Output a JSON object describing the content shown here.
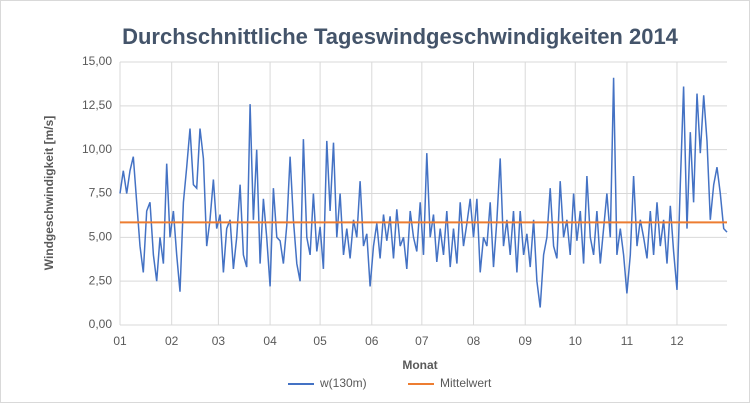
{
  "chart_data": {
    "type": "line",
    "title": "Durchschnittliche Tageswindgeschwindigkeiten 2014",
    "x_label": "Monat",
    "y_label": "Windgeschwindigkeit [m/s]",
    "xlim": [
      1,
      365
    ],
    "xticks": [
      {
        "value": 1,
        "label": "01"
      },
      {
        "value": 32,
        "label": "02"
      },
      {
        "value": 60,
        "label": "03"
      },
      {
        "value": 91,
        "label": "04"
      },
      {
        "value": 121,
        "label": "05"
      },
      {
        "value": 152,
        "label": "06"
      },
      {
        "value": 182,
        "label": "07"
      },
      {
        "value": 213,
        "label": "08"
      },
      {
        "value": 244,
        "label": "09"
      },
      {
        "value": 274,
        "label": "10"
      },
      {
        "value": 305,
        "label": "11"
      },
      {
        "value": 335,
        "label": "12"
      }
    ],
    "ylim": [
      0,
      15
    ],
    "yticks": [
      {
        "value": 0,
        "label": "0,00"
      },
      {
        "value": 2.5,
        "label": "2,50"
      },
      {
        "value": 5,
        "label": "5,00"
      },
      {
        "value": 7.5,
        "label": "7,50"
      },
      {
        "value": 10,
        "label": "10,00"
      },
      {
        "value": 12.5,
        "label": "12,50"
      },
      {
        "value": 15,
        "label": "15,00"
      }
    ],
    "grid": true,
    "legend": "bottom",
    "series": [
      {
        "name": "w(130m)",
        "color": "#4472c4",
        "x": [
          1,
          3,
          5,
          7,
          9,
          11,
          13,
          15,
          17,
          19,
          21,
          23,
          25,
          27,
          29,
          31,
          33,
          35,
          37,
          39,
          41,
          43,
          45,
          47,
          49,
          51,
          53,
          55,
          57,
          59,
          61,
          63,
          65,
          67,
          69,
          71,
          73,
          75,
          77,
          79,
          81,
          83,
          85,
          87,
          89,
          91,
          93,
          95,
          97,
          99,
          101,
          103,
          105,
          107,
          109,
          111,
          113,
          115,
          117,
          119,
          121,
          123,
          125,
          127,
          129,
          131,
          133,
          135,
          137,
          139,
          141,
          143,
          145,
          147,
          149,
          151,
          153,
          155,
          157,
          159,
          161,
          163,
          165,
          167,
          169,
          171,
          173,
          175,
          177,
          179,
          181,
          183,
          185,
          187,
          189,
          191,
          193,
          195,
          197,
          199,
          201,
          203,
          205,
          207,
          209,
          211,
          213,
          215,
          217,
          219,
          221,
          223,
          225,
          227,
          229,
          231,
          233,
          235,
          237,
          239,
          241,
          243,
          245,
          247,
          249,
          251,
          253,
          255,
          257,
          259,
          261,
          263,
          265,
          267,
          269,
          271,
          273,
          275,
          277,
          279,
          281,
          283,
          285,
          287,
          289,
          291,
          293,
          295,
          297,
          299,
          301,
          303,
          305,
          307,
          309,
          311,
          313,
          315,
          317,
          319,
          321,
          323,
          325,
          327,
          329,
          331,
          333,
          335,
          337,
          339,
          341,
          343,
          345,
          347,
          349,
          351,
          353,
          355,
          357,
          359,
          361,
          363,
          365
        ],
        "values": [
          7.5,
          8.8,
          7.5,
          8.8,
          9.6,
          7.0,
          4.5,
          3.0,
          6.5,
          7.0,
          4.0,
          2.5,
          5.0,
          3.5,
          9.2,
          5.0,
          6.5,
          4.0,
          1.9,
          7.0,
          9.0,
          11.2,
          8.0,
          7.8,
          11.2,
          9.5,
          4.5,
          6.0,
          8.3,
          5.5,
          6.3,
          3.0,
          5.5,
          6.0,
          3.2,
          5.0,
          8.0,
          4.0,
          3.3,
          12.6,
          6.0,
          10.0,
          3.5,
          7.2,
          5.0,
          2.2,
          7.8,
          5.0,
          4.8,
          3.5,
          5.7,
          9.6,
          6.0,
          3.5,
          2.5,
          10.6,
          5.0,
          4.0,
          7.5,
          4.2,
          5.6,
          3.2,
          10.5,
          6.5,
          10.4,
          5.0,
          7.5,
          4.0,
          5.5,
          3.8,
          6.0,
          5.0,
          8.2,
          4.5,
          5.2,
          2.2,
          4.5,
          5.8,
          3.8,
          6.3,
          4.8,
          6.2,
          3.8,
          6.6,
          4.5,
          5.0,
          3.2,
          6.5,
          5.0,
          4.2,
          7.0,
          4.0,
          9.8,
          5.0,
          6.3,
          3.6,
          5.5,
          4.0,
          6.5,
          3.3,
          5.5,
          3.5,
          7.0,
          4.5,
          5.8,
          7.2,
          5.0,
          7.2,
          3.0,
          5.0,
          4.5,
          7.0,
          3.3,
          6.0,
          9.5,
          4.5,
          6.0,
          4.0,
          6.5,
          3.0,
          6.5,
          4.0,
          5.2,
          3.3,
          6.0,
          2.5,
          1.0,
          4.0,
          5.0,
          7.8,
          4.5,
          3.8,
          8.2,
          5.0,
          6.0,
          4.0,
          7.5,
          4.8,
          6.5,
          3.5,
          8.5,
          5.0,
          4.0,
          6.5,
          3.5,
          5.5,
          7.5,
          5.0,
          14.1,
          4.0,
          5.5,
          4.0,
          1.8,
          4.0,
          8.5,
          4.5,
          6.0,
          5.0,
          3.8,
          6.5,
          4.0,
          7.0,
          4.5,
          6.0,
          3.5,
          6.8,
          4.2,
          2.0,
          8.0,
          13.6,
          5.5,
          11.0,
          7.0,
          13.2,
          9.8,
          13.1,
          10.5,
          6.0,
          8.0,
          9.0,
          7.5,
          5.5,
          5.3
        ]
      },
      {
        "name": "Mittelwert",
        "color": "#ed7d31",
        "x": [
          1,
          365
        ],
        "values": [
          5.85,
          5.85
        ]
      }
    ]
  }
}
